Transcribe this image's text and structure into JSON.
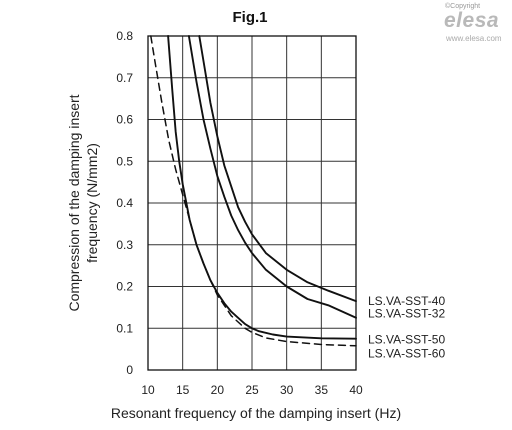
{
  "branding": {
    "copyright": "©Copyright",
    "brand": "elesa",
    "url": "www.elesa.com"
  },
  "chart_data": {
    "type": "line",
    "title": "Fig.1",
    "xlabel": "Resonant frequency of the damping insert (Hz)",
    "ylabel": [
      "Compression of the damping insert",
      "frequency (N/mm2)"
    ],
    "xlim": [
      10,
      40
    ],
    "ylim": [
      0,
      0.8
    ],
    "xticks": [
      10,
      15,
      20,
      25,
      30,
      35,
      40
    ],
    "yticks": [
      "0",
      "0.1",
      "0.2",
      "0.3",
      "0.4",
      "0.5",
      "0.6",
      "0.7",
      "0.8"
    ],
    "grid": true,
    "series": [
      {
        "name": "LS.VA-SST-40",
        "style": "solid",
        "x": [
          17.4,
          18,
          19,
          20,
          21,
          22,
          23,
          24,
          25,
          27,
          30,
          33,
          36,
          40
        ],
        "y": [
          0.8,
          0.74,
          0.64,
          0.56,
          0.49,
          0.44,
          0.39,
          0.355,
          0.325,
          0.28,
          0.24,
          0.21,
          0.19,
          0.165
        ]
      },
      {
        "name": "LS.VA-SST-32",
        "style": "solid",
        "x": [
          15.9,
          17,
          18,
          19,
          20,
          21,
          22,
          23,
          24,
          25,
          27,
          30,
          33,
          36,
          40
        ],
        "y": [
          0.8,
          0.69,
          0.6,
          0.53,
          0.465,
          0.415,
          0.37,
          0.335,
          0.305,
          0.28,
          0.24,
          0.2,
          0.17,
          0.155,
          0.125
        ]
      },
      {
        "name": "LS.VA-SST-50",
        "style": "solid",
        "x": [
          12.9,
          13.5,
          14,
          14.5,
          15,
          16,
          17,
          18,
          19,
          20,
          21,
          22,
          23,
          24,
          25,
          26,
          28,
          30,
          35,
          40
        ],
        "y": [
          0.8,
          0.67,
          0.57,
          0.5,
          0.445,
          0.36,
          0.3,
          0.255,
          0.215,
          0.185,
          0.16,
          0.14,
          0.125,
          0.11,
          0.1,
          0.093,
          0.085,
          0.08,
          0.076,
          0.075
        ]
      },
      {
        "name": "LS.VA-SST-60",
        "style": "dashed",
        "x": [
          10.4,
          11,
          12,
          13,
          14,
          15,
          16,
          17,
          18,
          19,
          20,
          21,
          22,
          23,
          24,
          25,
          27,
          30,
          35,
          40
        ],
        "y": [
          0.8,
          0.74,
          0.64,
          0.55,
          0.48,
          0.42,
          0.36,
          0.3,
          0.255,
          0.215,
          0.18,
          0.155,
          0.13,
          0.115,
          0.1,
          0.09,
          0.077,
          0.068,
          0.061,
          0.058
        ]
      }
    ],
    "series_label_order": [
      "LS.VA-SST-40",
      "LS.VA-SST-32",
      "LS.VA-SST-50",
      "LS.VA-SST-60"
    ],
    "series_label_y": [
      0.165,
      0.135,
      0.073,
      0.04
    ],
    "legend": "right"
  }
}
